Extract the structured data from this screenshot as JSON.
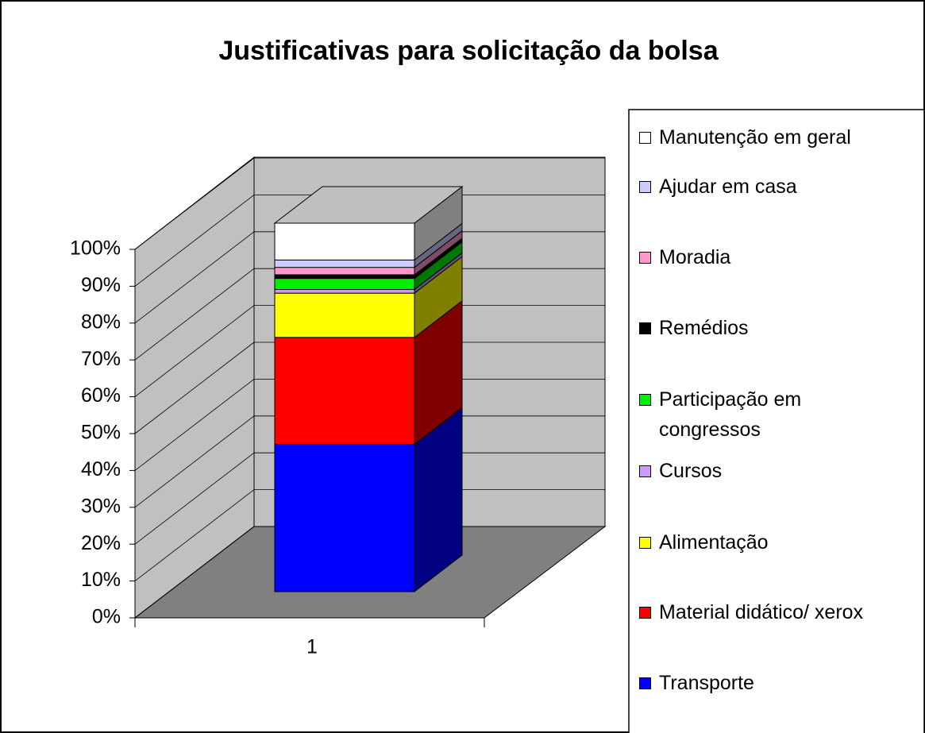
{
  "chart_data": {
    "type": "bar",
    "stacked": true,
    "three_d": true,
    "title": "Justificativas para solicitação da bolsa",
    "categories": [
      "1"
    ],
    "ylim": [
      0,
      100
    ],
    "yticks": [
      {
        "value": 0,
        "label": "0%"
      },
      {
        "value": 10,
        "label": "10%"
      },
      {
        "value": 20,
        "label": "20%"
      },
      {
        "value": 30,
        "label": "30%"
      },
      {
        "value": 40,
        "label": "40%"
      },
      {
        "value": 50,
        "label": "50%"
      },
      {
        "value": 60,
        "label": "60%"
      },
      {
        "value": 70,
        "label": "70%"
      },
      {
        "value": 80,
        "label": "80%"
      },
      {
        "value": 90,
        "label": "90%"
      },
      {
        "value": 100,
        "label": "100%"
      }
    ],
    "grid": true,
    "legend": "right",
    "series": [
      {
        "name": "Transporte",
        "color": "#0000ff",
        "values": [
          40
        ]
      },
      {
        "name": "Material didático/ xerox",
        "color": "#ff0000",
        "values": [
          29
        ]
      },
      {
        "name": "Alimentação",
        "color": "#ffff00",
        "values": [
          12
        ]
      },
      {
        "name": "Cursos",
        "color": "#cc99ff",
        "values": [
          1
        ]
      },
      {
        "name": "Participação em congressos",
        "color": "#00ee00",
        "values": [
          3
        ]
      },
      {
        "name": "Remédios",
        "color": "#000000",
        "values": [
          1
        ]
      },
      {
        "name": "Moradia",
        "color": "#ff99cc",
        "values": [
          2
        ]
      },
      {
        "name": "Ajudar em casa",
        "color": "#ccccff",
        "values": [
          2
        ]
      },
      {
        "name": "Manutenção em geral",
        "color": "#ffffff",
        "values": [
          10
        ]
      }
    ]
  }
}
